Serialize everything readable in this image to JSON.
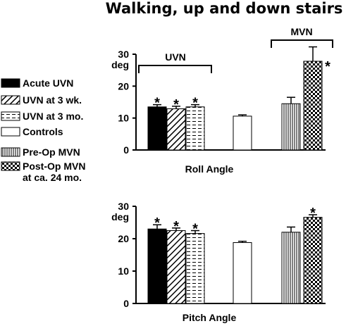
{
  "title": "Walking, up and down stairs",
  "colors": {
    "ink": "#000000",
    "background": "#ffffff"
  },
  "legend": [
    {
      "label": "Acute UVN",
      "pattern": "solid"
    },
    {
      "label": "UVN at 3 wk.",
      "pattern": "diagonal"
    },
    {
      "label": "UVN at 3 mo.",
      "pattern": "dashes"
    },
    {
      "label": "Controls",
      "pattern": "white"
    },
    {
      "label": "Pre-Op MVN",
      "pattern": "vertical"
    },
    {
      "label": "Post-Op MVN",
      "label2": "at ca. 24 mo.",
      "pattern": "checker"
    }
  ],
  "brackets": {
    "uvn": "UVN",
    "mvn": "MVN"
  },
  "chart_data": [
    {
      "type": "bar",
      "title": "",
      "xlabel": "Roll Angle",
      "ylabel": "deg",
      "ylim": [
        0,
        30
      ],
      "yticks": [
        "0",
        "10",
        "20",
        "30"
      ],
      "categories": [
        "Acute UVN",
        "UVN at 3 wk.",
        "UVN at 3 mo.",
        "Controls",
        "Pre-Op MVN",
        "Post-Op MVN at ca. 24 mo."
      ],
      "values": [
        13.5,
        12.9,
        13.5,
        10.6,
        14.5,
        27.8
      ],
      "errors": [
        0.7,
        0.8,
        0.7,
        0.4,
        2.0,
        4.5
      ],
      "significant": [
        true,
        true,
        true,
        false,
        false,
        true
      ],
      "significance_marker": "*"
    },
    {
      "type": "bar",
      "title": "",
      "xlabel": "Pitch Angle",
      "ylabel": "deg",
      "ylim": [
        0,
        30
      ],
      "yticks": [
        "0",
        "10",
        "20",
        "30"
      ],
      "categories": [
        "Acute UVN",
        "UVN at 3 wk.",
        "UVN at 3 mo.",
        "Controls",
        "Pre-Op MVN",
        "Post-Op MVN at ca. 24 mo."
      ],
      "values": [
        23.0,
        22.5,
        21.6,
        18.8,
        22.0,
        26.6
      ],
      "errors": [
        1.3,
        0.8,
        0.9,
        0.4,
        1.6,
        0.8
      ],
      "significant": [
        true,
        true,
        true,
        false,
        false,
        true
      ],
      "significance_marker": "*"
    }
  ]
}
